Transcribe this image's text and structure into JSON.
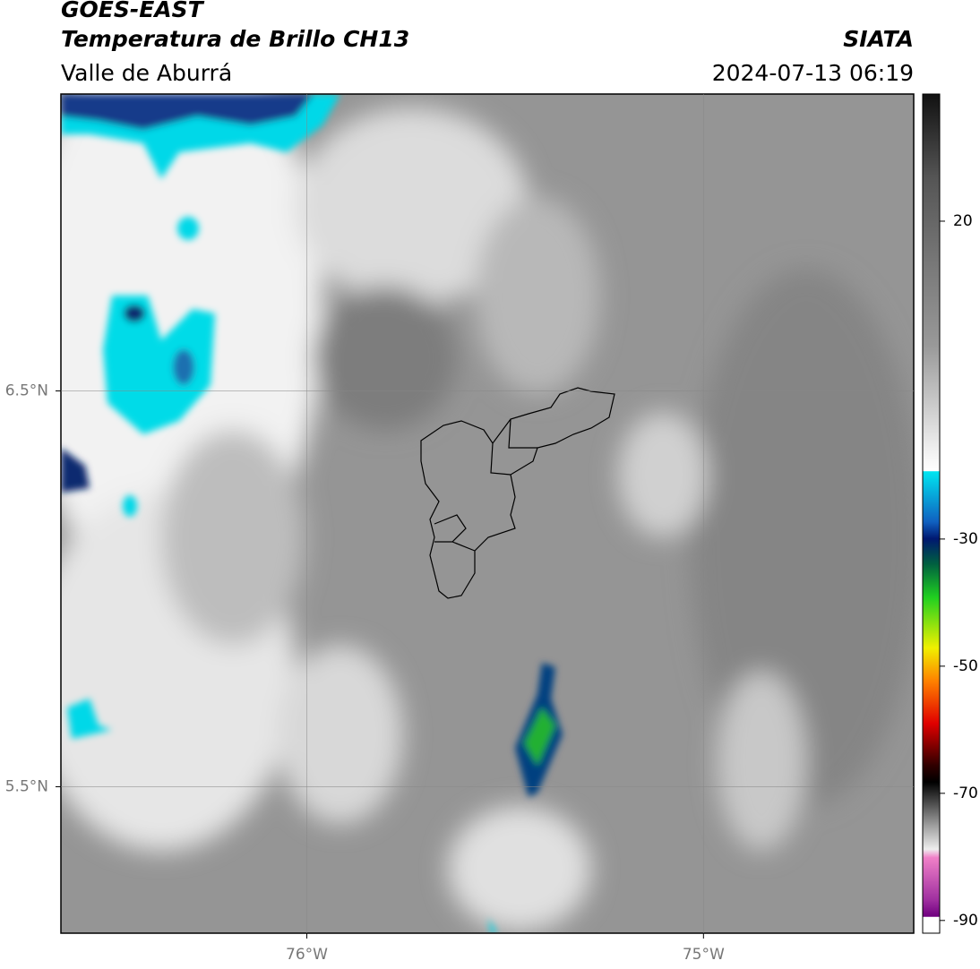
{
  "header": {
    "title": "GOES-EAST",
    "subtitle": "Temperatura de Brillo CH13",
    "region": "Valle de Aburrá",
    "source": "SIATA",
    "datetime": "2024-07-13 06:19"
  },
  "map": {
    "xlim": [
      -76.62,
      -74.47
    ],
    "ylim": [
      5.13,
      7.25
    ],
    "xticks": [
      {
        "value": -76,
        "label": "76°W"
      },
      {
        "value": -75,
        "label": "75°W"
      }
    ],
    "yticks": [
      {
        "value": 5.5,
        "label": "5.5°N"
      },
      {
        "value": 6.5,
        "label": "6.5°N"
      }
    ],
    "grid": true
  },
  "colorbar": {
    "lim": [
      -92,
      40
    ],
    "ticks": [
      20,
      -30,
      -50,
      -70,
      -90
    ]
  }
}
